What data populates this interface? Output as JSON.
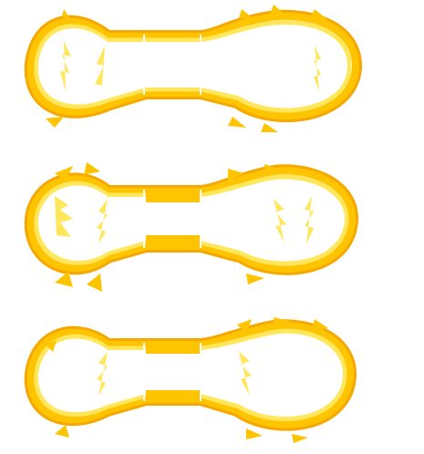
{
  "sheet": {
    "background": "#ffffff",
    "palette": {
      "outer": "#F5A800",
      "core": "#FFC400",
      "mid": "#FFE65A",
      "inner": "#FFF6B0",
      "highlight": "#FFFFFF"
    },
    "frames": [
      {
        "id": "frame-1",
        "variant": "flame-top-right"
      },
      {
        "id": "frame-2",
        "variant": "flame-both-lobes"
      },
      {
        "id": "frame-3",
        "variant": "flame-right-lobe"
      }
    ]
  }
}
